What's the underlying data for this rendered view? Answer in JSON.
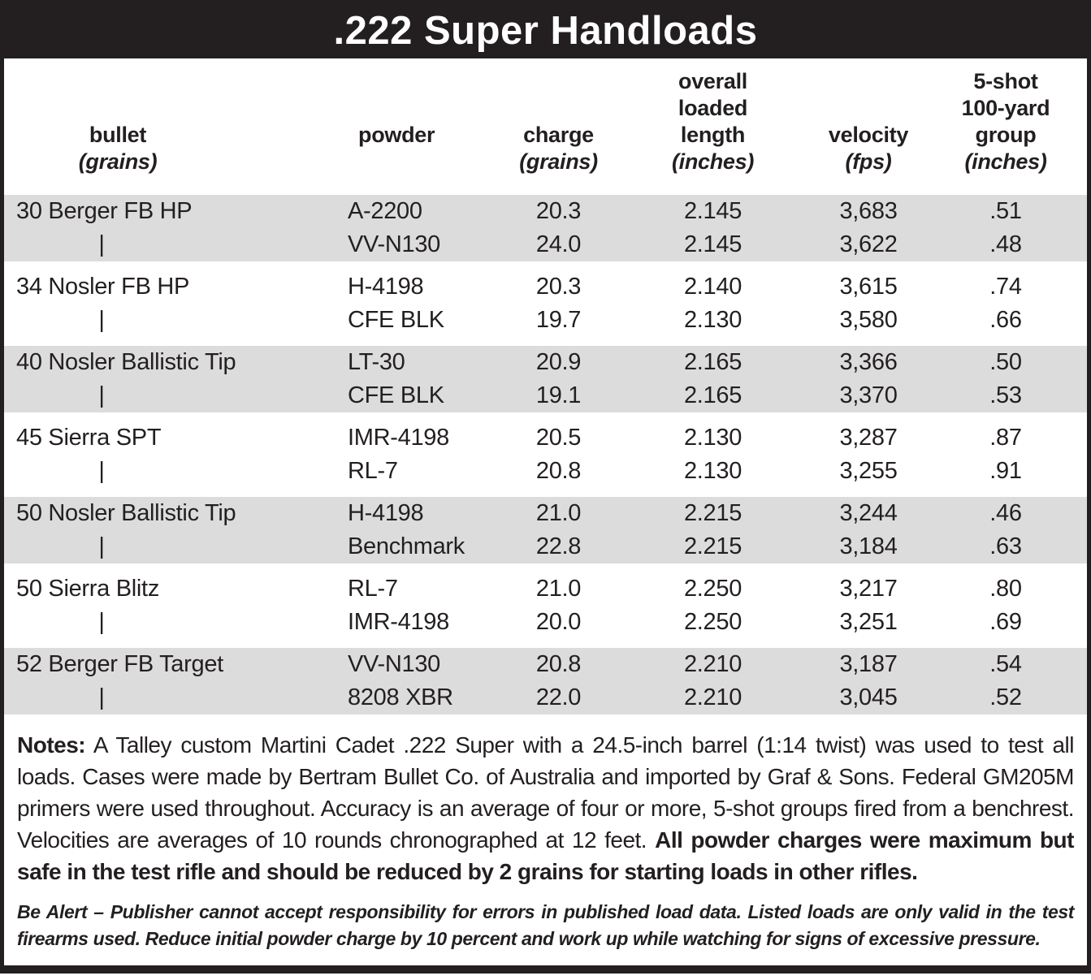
{
  "title": ".222 Super Handloads",
  "colors": {
    "ink": "#231f20",
    "band": "#dcdcdc",
    "paper": "#ffffff"
  },
  "table": {
    "ditto_mark": "|",
    "columns": [
      {
        "id": "bullet",
        "lines": [
          "bullet"
        ],
        "unit_label": "(grains)"
      },
      {
        "id": "powder",
        "lines": [
          "powder"
        ],
        "unit_label": ""
      },
      {
        "id": "charge",
        "lines": [
          "charge"
        ],
        "unit_label": "(grains)"
      },
      {
        "id": "oal",
        "lines": [
          "overall",
          "loaded",
          "length"
        ],
        "unit_label": "(inches)"
      },
      {
        "id": "velocity",
        "lines": [
          "velocity"
        ],
        "unit_label": "(fps)"
      },
      {
        "id": "group",
        "lines": [
          "5-shot",
          "100-yard",
          "group"
        ],
        "unit_label": "(inches)"
      }
    ],
    "groups": [
      {
        "bullet": "30 Berger FB HP",
        "shaded": true,
        "loads": [
          {
            "powder": "A-2200",
            "charge": "20.3",
            "oal": "2.145",
            "velocity": "3,683",
            "group": ".51"
          },
          {
            "powder": "VV-N130",
            "charge": "24.0",
            "oal": "2.145",
            "velocity": "3,622",
            "group": ".48"
          }
        ]
      },
      {
        "bullet": "34 Nosler FB HP",
        "shaded": false,
        "loads": [
          {
            "powder": "H-4198",
            "charge": "20.3",
            "oal": "2.140",
            "velocity": "3,615",
            "group": ".74"
          },
          {
            "powder": "CFE BLK",
            "charge": "19.7",
            "oal": "2.130",
            "velocity": "3,580",
            "group": ".66"
          }
        ]
      },
      {
        "bullet": "40 Nosler Ballistic Tip",
        "shaded": true,
        "loads": [
          {
            "powder": "LT-30",
            "charge": "20.9",
            "oal": "2.165",
            "velocity": "3,366",
            "group": ".50"
          },
          {
            "powder": "CFE BLK",
            "charge": "19.1",
            "oal": "2.165",
            "velocity": "3,370",
            "group": ".53"
          }
        ]
      },
      {
        "bullet": "45 Sierra SPT",
        "shaded": false,
        "loads": [
          {
            "powder": "IMR-4198",
            "charge": "20.5",
            "oal": "2.130",
            "velocity": "3,287",
            "group": ".87"
          },
          {
            "powder": "RL-7",
            "charge": "20.8",
            "oal": "2.130",
            "velocity": "3,255",
            "group": ".91"
          }
        ]
      },
      {
        "bullet": "50 Nosler Ballistic Tip",
        "shaded": true,
        "loads": [
          {
            "powder": "H-4198",
            "charge": "21.0",
            "oal": "2.215",
            "velocity": "3,244",
            "group": ".46"
          },
          {
            "powder": "Benchmark",
            "charge": "22.8",
            "oal": "2.215",
            "velocity": "3,184",
            "group": ".63"
          }
        ]
      },
      {
        "bullet": "50 Sierra Blitz",
        "shaded": false,
        "loads": [
          {
            "powder": "RL-7",
            "charge": "21.0",
            "oal": "2.250",
            "velocity": "3,217",
            "group": ".80"
          },
          {
            "powder": "IMR-4198",
            "charge": "20.0",
            "oal": "2.250",
            "velocity": "3,251",
            "group": ".69"
          }
        ]
      },
      {
        "bullet": "52 Berger FB Target",
        "shaded": true,
        "loads": [
          {
            "powder": "VV-N130",
            "charge": "20.8",
            "oal": "2.210",
            "velocity": "3,187",
            "group": ".54"
          },
          {
            "powder": "8208 XBR",
            "charge": "22.0",
            "oal": "2.210",
            "velocity": "3,045",
            "group": ".52"
          }
        ]
      }
    ]
  },
  "notes": {
    "label": "Notes:",
    "body": " A Talley custom Martini Cadet .222 Super with a 24.5-inch barrel (1:14 twist) was used to test all loads. Cases were made by Bertram Bullet Co. of Australia and imported by Graf & Sons. Federal GM205M primers were used throughout. Accuracy is an average of four or more, 5-shot groups fired from a benchrest. Velocities are averages of 10 rounds chronographed at 12 feet. ",
    "bold": "All powder charges were maximum but safe in the test rifle and should be reduced by 2 grains for starting loads in other rifles."
  },
  "disclaimer": {
    "text": "Be Alert – Publisher cannot accept responsibility for errors in published load data. Listed loads are only valid in the test firearms used. Reduce initial powder charge by 10 percent and work up while watching for signs of excessive pressure."
  }
}
